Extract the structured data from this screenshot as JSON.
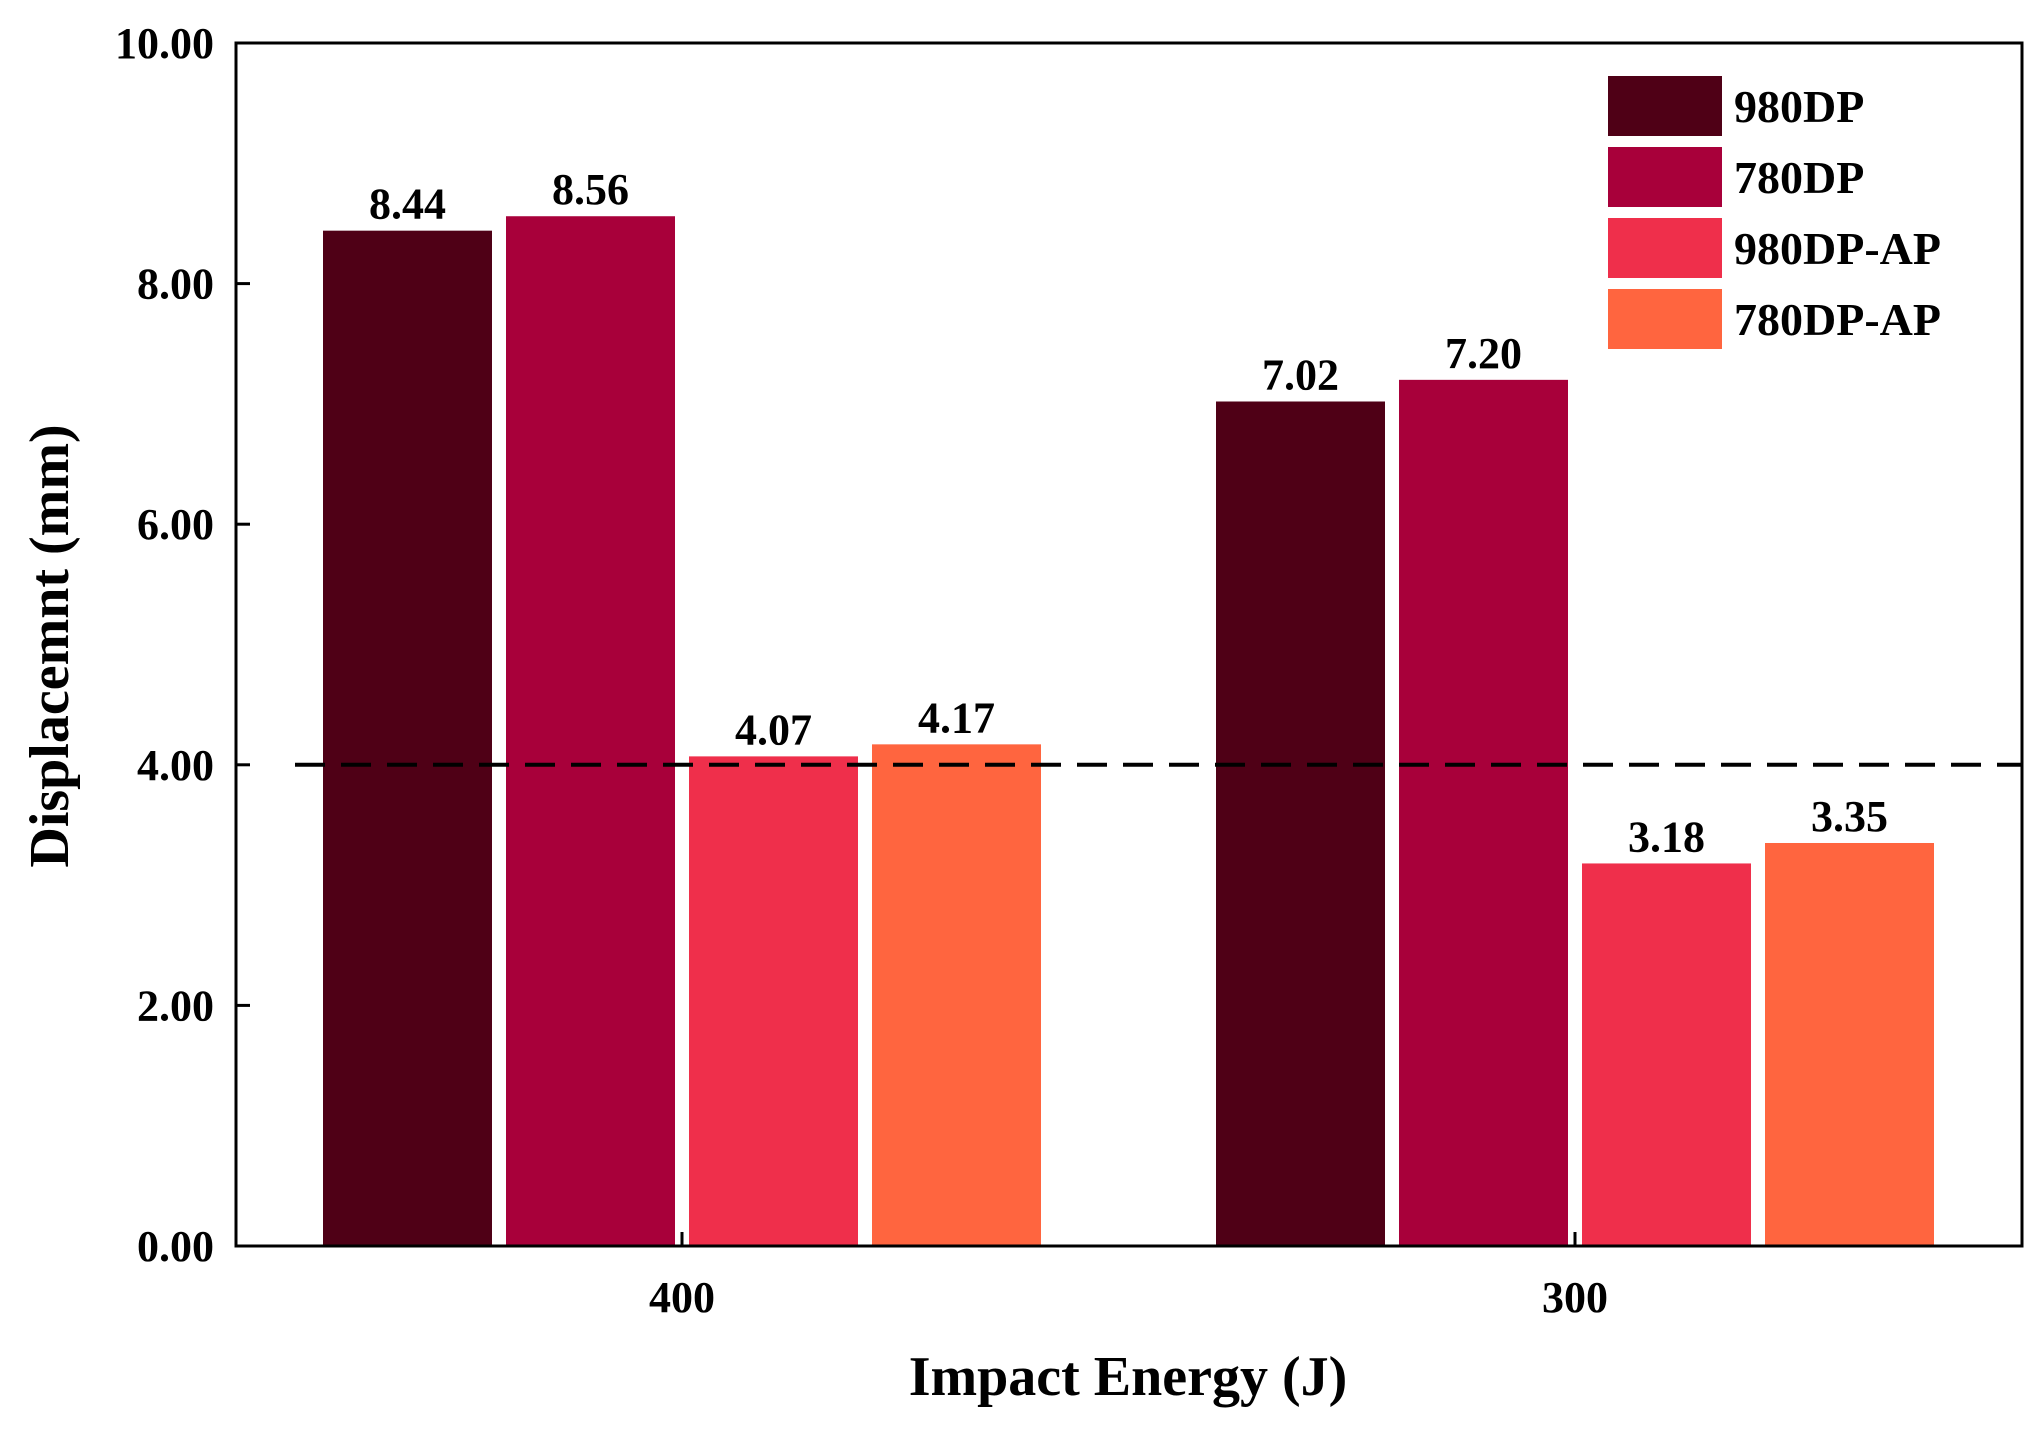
{
  "chart_data": {
    "type": "bar",
    "title": "",
    "xlabel": "Impact Energy (J)",
    "ylabel": "Displacemnt (mm)",
    "ylim": [
      0,
      10
    ],
    "yticks": [
      0,
      2,
      4,
      6,
      8,
      10
    ],
    "ytick_labels": [
      "0.00",
      "2.00",
      "4.00",
      "6.00",
      "8.00",
      "10.00"
    ],
    "categories": [
      "400",
      "300"
    ],
    "series": [
      {
        "name": "980DP",
        "color": "#4f0016",
        "values": [
          8.44,
          7.02
        ],
        "labels": [
          "8.44",
          "7.02"
        ]
      },
      {
        "name": "780DP",
        "color": "#a8003a",
        "values": [
          8.56,
          7.2
        ],
        "labels": [
          "8.56",
          "7.20"
        ]
      },
      {
        "name": "980DP-AP",
        "color": "#ef2f4b",
        "values": [
          4.07,
          3.18
        ],
        "labels": [
          "4.07",
          "3.18"
        ]
      },
      {
        "name": "780DP-AP",
        "color": "#ff653f",
        "values": [
          4.17,
          3.35
        ],
        "labels": [
          "4.17",
          "3.35"
        ]
      }
    ],
    "reference_line": {
      "y": 4.0,
      "style": "dashed"
    },
    "legend_position": "top-right",
    "grid": false
  }
}
